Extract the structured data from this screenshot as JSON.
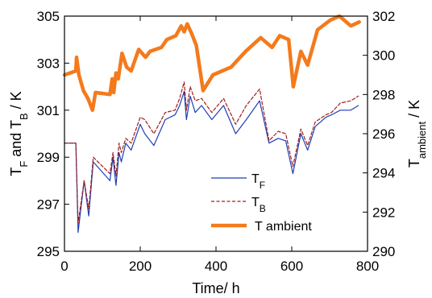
{
  "chart_data": {
    "type": "line",
    "xlabel": "Time/ h",
    "ylabel_left": {
      "main": "T",
      "sub1": "F",
      "mid": " and T",
      "sub2": "B",
      "tail": " / K"
    },
    "ylabel_right": {
      "main": "T",
      "sub": "ambient",
      "tail": " / K"
    },
    "xlim": [
      0,
      800
    ],
    "ylim_left": [
      295,
      305
    ],
    "ylim_right": [
      290,
      302
    ],
    "x_ticks": [
      "0",
      "200",
      "400",
      "600",
      "800"
    ],
    "y_left_ticks": [
      "295",
      "297",
      "299",
      "301",
      "303",
      "305"
    ],
    "y_right_ticks": [
      "290",
      "292",
      "294",
      "296",
      "298",
      "300",
      "302"
    ],
    "grid": false,
    "legend_position": "lower-right",
    "series": [
      {
        "key": "tf",
        "name": "T_F",
        "axis": "left",
        "color": "#1f3fb5",
        "style": "solid",
        "x": [
          0,
          30,
          36,
          52,
          64,
          76,
          120,
          128,
          136,
          144,
          150,
          162,
          176,
          200,
          212,
          236,
          266,
          292,
          304,
          316,
          322,
          332,
          345,
          362,
          389,
          420,
          452,
          480,
          515,
          540,
          564,
          584,
          603,
          624,
          642,
          662,
          690,
          705,
          728,
          756,
          776
        ],
        "y": [
          299.6,
          299.6,
          295.8,
          298.0,
          296.5,
          298.8,
          298.0,
          299.0,
          297.8,
          299.2,
          298.8,
          299.6,
          299.3,
          300.4,
          300.0,
          299.5,
          300.6,
          300.8,
          301.2,
          301.8,
          300.6,
          301.6,
          300.9,
          301.2,
          300.6,
          301.2,
          300.0,
          300.6,
          301.4,
          299.6,
          299.8,
          299.7,
          298.3,
          300.0,
          299.3,
          300.3,
          300.7,
          300.8,
          301.0,
          301.0,
          301.2
        ]
      },
      {
        "key": "tb",
        "name": "T_B",
        "axis": "left",
        "color": "#a11d1d",
        "style": "dashed",
        "x": [
          0,
          30,
          36,
          52,
          64,
          76,
          120,
          128,
          136,
          144,
          150,
          162,
          176,
          200,
          212,
          236,
          266,
          292,
          304,
          316,
          322,
          332,
          345,
          362,
          389,
          420,
          452,
          480,
          515,
          540,
          564,
          584,
          603,
          624,
          642,
          662,
          690,
          705,
          728,
          756,
          776
        ],
        "y": [
          299.6,
          299.6,
          296.2,
          298.0,
          296.8,
          299.0,
          298.3,
          299.2,
          298.2,
          299.6,
          299.2,
          299.8,
          299.6,
          300.7,
          300.6,
          300.0,
          300.9,
          301.0,
          301.5,
          302.2,
          301.0,
          302.0,
          301.4,
          301.5,
          300.9,
          301.5,
          300.4,
          301.2,
          301.9,
          299.7,
          300.1,
          300.0,
          298.6,
          300.2,
          299.5,
          300.5,
          300.8,
          300.9,
          301.3,
          301.4,
          301.6
        ]
      },
      {
        "key": "ta",
        "name": "T ambient",
        "axis": "right",
        "color": "#f47a1c",
        "style": "solid",
        "x": [
          0,
          30,
          32,
          38,
          50,
          62,
          74,
          82,
          120,
          126,
          130,
          136,
          142,
          152,
          164,
          176,
          196,
          214,
          226,
          256,
          270,
          294,
          308,
          316,
          324,
          336,
          348,
          366,
          392,
          440,
          478,
          518,
          548,
          568,
          592,
          604,
          624,
          642,
          668,
          702,
          726,
          756,
          778
        ],
        "y": [
          299.0,
          299.2,
          299.9,
          299.0,
          298.2,
          297.8,
          297.2,
          298.1,
          298.0,
          298.8,
          298.1,
          299.1,
          298.8,
          300.1,
          299.4,
          299.2,
          300.3,
          299.9,
          300.2,
          300.4,
          300.8,
          301.0,
          301.5,
          301.2,
          301.6,
          301.1,
          300.5,
          298.2,
          299.0,
          299.4,
          300.2,
          300.9,
          300.4,
          301.0,
          300.8,
          298.4,
          300.2,
          299.5,
          301.3,
          301.8,
          302.0,
          301.5,
          301.7
        ]
      }
    ],
    "legend": [
      {
        "main": "T",
        "sub": "F",
        "series": "tf"
      },
      {
        "main": "T",
        "sub": "B",
        "series": "tb"
      },
      {
        "main": "T ambient",
        "sub": "",
        "series": "ta"
      }
    ]
  }
}
